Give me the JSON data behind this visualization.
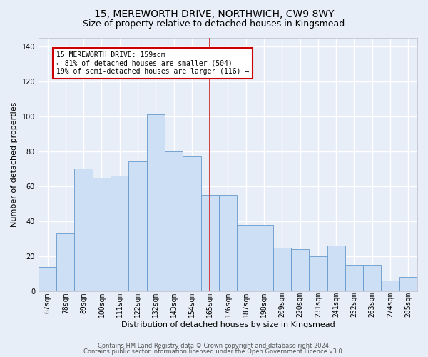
{
  "title": "15, MEREWORTH DRIVE, NORTHWICH, CW9 8WY",
  "subtitle": "Size of property relative to detached houses in Kingsmead",
  "xlabel": "Distribution of detached houses by size in Kingsmead",
  "ylabel": "Number of detached properties",
  "x_labels": [
    "67sqm",
    "78sqm",
    "89sqm",
    "100sqm",
    "111sqm",
    "122sqm",
    "132sqm",
    "143sqm",
    "154sqm",
    "165sqm",
    "176sqm",
    "187sqm",
    "198sqm",
    "209sqm",
    "220sqm",
    "231sqm",
    "241sqm",
    "252sqm",
    "263sqm",
    "274sqm",
    "285sqm"
  ],
  "bar_heights": [
    14,
    33,
    70,
    65,
    66,
    74,
    101,
    80,
    77,
    55,
    55,
    38,
    38,
    25,
    24,
    20,
    26,
    15,
    15,
    6,
    8
  ],
  "ylim_max": 145,
  "yticks": [
    0,
    20,
    40,
    60,
    80,
    100,
    120,
    140
  ],
  "bar_color": "#ccdff5",
  "bar_edge_color": "#6699cc",
  "vline_pos": 9.0,
  "vline_color": "#cc2222",
  "annotation_text": "15 MEREWORTH DRIVE: 159sqm\n← 81% of detached houses are smaller (504)\n19% of semi-detached houses are larger (116) →",
  "ann_box_fc": "#ffffff",
  "ann_box_ec": "#cc0000",
  "footer1": "Contains HM Land Registry data © Crown copyright and database right 2024.",
  "footer2": "Contains public sector information licensed under the Open Government Licence v3.0.",
  "bg_color": "#e8eef8",
  "grid_color": "#ffffff",
  "title_fontsize": 10,
  "subtitle_fontsize": 9,
  "ylabel_fontsize": 8,
  "xlabel_fontsize": 8,
  "tick_fontsize": 7,
  "ann_fontsize": 7,
  "footer_fontsize": 6
}
